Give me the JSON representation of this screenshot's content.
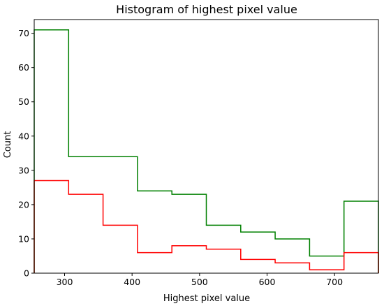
{
  "chart_data": {
    "type": "histogram",
    "title": "Histogram of highest pixel value",
    "xlabel": "Highest pixel value",
    "ylabel": "Count",
    "xlim": [
      255,
      765
    ],
    "ylim": [
      0,
      74
    ],
    "xticks": [
      300,
      400,
      500,
      600,
      700
    ],
    "yticks": [
      0,
      10,
      20,
      30,
      40,
      50,
      60,
      70
    ],
    "bin_edges": [
      255,
      306,
      357,
      408,
      459,
      510,
      561,
      612,
      663,
      714,
      765
    ],
    "series": [
      {
        "color": "#008000",
        "values": [
          71,
          34,
          34,
          24,
          23,
          14,
          12,
          10,
          5,
          21
        ]
      },
      {
        "color": "#ff0000",
        "values": [
          27,
          23,
          14,
          6,
          8,
          7,
          4,
          3,
          1,
          6
        ]
      }
    ],
    "grid": false,
    "histtype": "step"
  }
}
